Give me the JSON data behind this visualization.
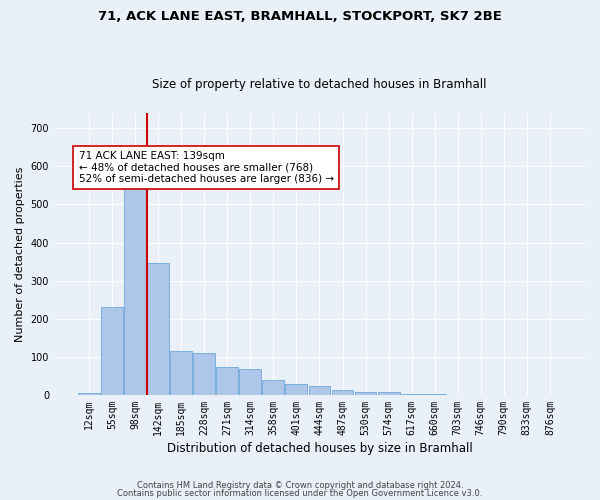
{
  "title": "71, ACK LANE EAST, BRAMHALL, STOCKPORT, SK7 2BE",
  "subtitle": "Size of property relative to detached houses in Bramhall",
  "xlabel": "Distribution of detached houses by size in Bramhall",
  "ylabel": "Number of detached properties",
  "bin_labels": [
    "12sqm",
    "55sqm",
    "98sqm",
    "142sqm",
    "185sqm",
    "228sqm",
    "271sqm",
    "314sqm",
    "358sqm",
    "401sqm",
    "444sqm",
    "487sqm",
    "530sqm",
    "574sqm",
    "617sqm",
    "660sqm",
    "703sqm",
    "746sqm",
    "790sqm",
    "833sqm",
    "876sqm"
  ],
  "bar_heights": [
    5,
    230,
    640,
    345,
    115,
    110,
    73,
    68,
    38,
    28,
    23,
    14,
    8,
    7,
    2,
    2,
    1,
    0,
    0,
    0,
    0
  ],
  "bar_color": "#aec6e8",
  "bar_edge_color": "#5a9fd4",
  "vline_color": "#cc0000",
  "annotation_text": "71 ACK LANE EAST: 139sqm\n← 48% of detached houses are smaller (768)\n52% of semi-detached houses are larger (836) →",
  "annotation_box_color": "#ffffff",
  "annotation_box_edge": "#cc0000",
  "ylim": [
    0,
    740
  ],
  "yticks": [
    0,
    100,
    200,
    300,
    400,
    500,
    600,
    700
  ],
  "footer_line1": "Contains HM Land Registry data © Crown copyright and database right 2024.",
  "footer_line2": "Contains public sector information licensed under the Open Government Licence v3.0.",
  "bg_color": "#eaf0f8",
  "plot_bg_color": "#eaf0f8",
  "grid_color": "#ffffff",
  "title_fontsize": 9.5,
  "subtitle_fontsize": 8.5,
  "ylabel_fontsize": 8,
  "xlabel_fontsize": 8.5,
  "tick_fontsize": 7,
  "annot_fontsize": 7.5,
  "footer_fontsize": 6
}
